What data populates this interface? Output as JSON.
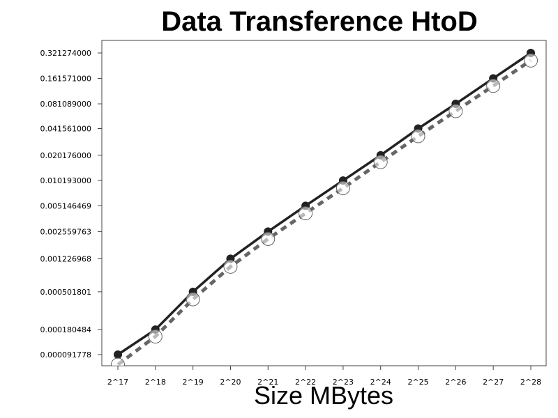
{
  "chart_data": {
    "type": "line",
    "title": "Data Transference HtoD",
    "xlabel": "Size MBytes",
    "ylabel": "",
    "yscale": "log",
    "grid": false,
    "legend": "none",
    "categories": [
      "2^17",
      "2^18",
      "2^19",
      "2^20",
      "2^21",
      "2^22",
      "2^23",
      "2^24",
      "2^25",
      "2^26",
      "2^27",
      "2^28"
    ],
    "ytick_labels": [
      "0.000091778",
      "0.000180484",
      "0.000501801",
      "0.001226968",
      "0.002559763",
      "0.005146469",
      "0.010193000",
      "0.020176000",
      "0.041561000",
      "0.081089000",
      "0.161571000",
      "0.321274000"
    ],
    "ytick_values": [
      9.1778e-05,
      0.000180484,
      0.000501801,
      0.001226968,
      0.002559763,
      0.005146469,
      0.010193,
      0.020176,
      0.041561,
      0.081089,
      0.161571,
      0.321274
    ],
    "ylim": [
      8.5e-05,
      0.43
    ],
    "series": [
      {
        "style": "solid",
        "marker": "filled-circle",
        "color": "#222222",
        "values": [
          9.1778e-05,
          0.000180484,
          0.000501801,
          0.001226968,
          0.002559763,
          0.005146469,
          0.010193,
          0.020176,
          0.041561,
          0.081089,
          0.161571,
          0.321274
        ]
      },
      {
        "style": "dashed",
        "marker": "open-circle",
        "color": "#666666",
        "values": [
          7e-05,
          0.00015,
          0.00041,
          0.00099,
          0.0021,
          0.0042,
          0.0083,
          0.0168,
          0.0338,
          0.0667,
          0.132,
          0.262
        ]
      }
    ]
  }
}
